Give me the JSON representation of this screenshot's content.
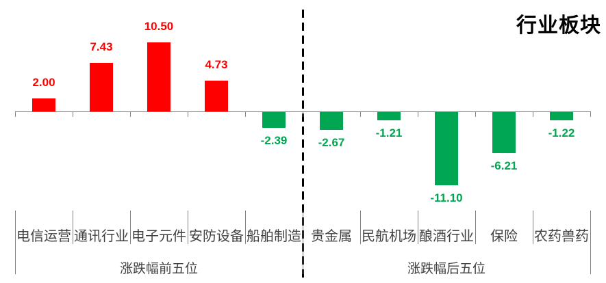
{
  "title": "行业板块",
  "chart_data": {
    "type": "bar",
    "title": "行业板块",
    "xlabel": "",
    "ylabel": "",
    "baseline": 0,
    "ylim": [
      -12,
      11
    ],
    "grid": false,
    "legend": false,
    "axis_labels_hidden": true,
    "groups": [
      {
        "label": "涨跌幅前五位",
        "categories": [
          "电信运营",
          "通讯行业",
          "电子元件",
          "安防设备",
          "船舶制造"
        ],
        "values": [
          2.0,
          7.43,
          10.5,
          4.73,
          -2.39
        ],
        "value_labels": [
          "2.00",
          "7.43",
          "10.50",
          "4.73",
          "-2.39"
        ]
      },
      {
        "label": "涨跌幅后五位",
        "categories": [
          "贵金属",
          "民航机场",
          "酿酒行业",
          "保险",
          "农药兽药"
        ],
        "values": [
          -2.67,
          -1.21,
          -11.1,
          -6.21,
          -1.22
        ],
        "value_labels": [
          "-2.67",
          "-1.21",
          "-11.10",
          "-6.21",
          "-1.22"
        ]
      }
    ],
    "colors": {
      "positive_bar": "#ff0000",
      "positive_label": "#ff0000",
      "negative_bar": "#00a651",
      "negative_label": "#00a651",
      "axis": "#808080",
      "tick": "#808080",
      "separator": "#808080",
      "category_text": "#404040",
      "group_text": "#404040",
      "divider": "#000000",
      "title_text": "#000000"
    }
  }
}
